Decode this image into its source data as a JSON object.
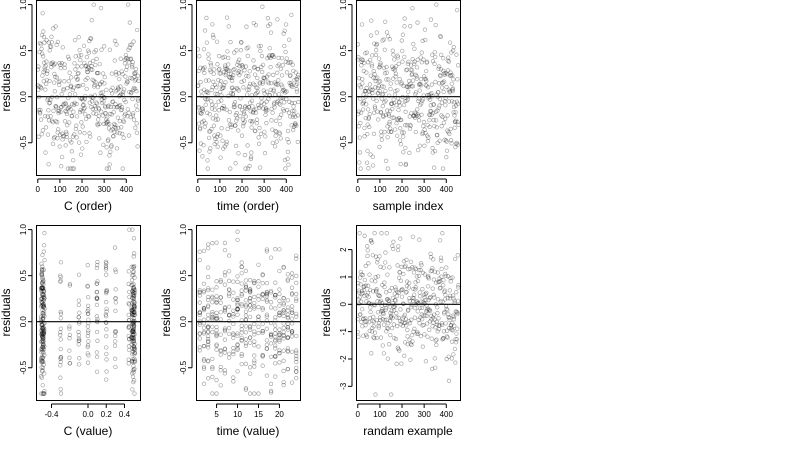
{
  "figure": {
    "layout": "2 rows x 3 columns of scatter panels",
    "point_color": "#000000",
    "point_opacity": 0.35,
    "reference_line": {
      "y": 0,
      "color": "#000000"
    }
  },
  "chart_data": [
    {
      "id": "c-order",
      "type": "scatter",
      "xlabel": "C (order)",
      "ylabel": "residuals",
      "xlim": [
        -8,
        462
      ],
      "ylim": [
        -0.85,
        1.05
      ],
      "xticks": [
        0,
        100,
        200,
        300,
        400
      ],
      "yticks": [
        -0.5,
        0.0,
        0.5,
        1.0
      ],
      "xtick_labels": [
        "0",
        "100",
        "200",
        "300",
        "400"
      ],
      "ytick_labels": [
        "-0.5",
        "0.0",
        "0.5",
        "1.0"
      ],
      "grid": false,
      "reference_line": 0,
      "series": [
        {
          "n_points": 456,
          "x": "observation index 0-455",
          "y_range_approx": [
            -0.78,
            1.0
          ],
          "sample_points": [
            [
              2,
              -0.55
            ],
            [
              20,
              -0.7
            ],
            [
              60,
              0.55
            ],
            [
              70,
              0.75
            ],
            [
              80,
              -0.55
            ],
            [
              150,
              0.88
            ],
            [
              200,
              0.62
            ],
            [
              240,
              0.55
            ],
            [
              300,
              -0.65
            ],
            [
              370,
              0.62
            ],
            [
              400,
              -0.5
            ],
            [
              440,
              0.78
            ],
            [
              450,
              -0.55
            ]
          ]
        }
      ]
    },
    {
      "id": "time-order",
      "type": "scatter",
      "xlabel": "time (order)",
      "ylabel": "residuals",
      "xlim": [
        -8,
        462
      ],
      "ylim": [
        -0.85,
        1.05
      ],
      "xticks": [
        0,
        100,
        200,
        300,
        400
      ],
      "yticks": [
        -0.5,
        0.0,
        0.5,
        1.0
      ],
      "xtick_labels": [
        "0",
        "100",
        "200",
        "300",
        "400"
      ],
      "ytick_labels": [
        "-0.5",
        "0.0",
        "0.5",
        "1.0"
      ],
      "grid": false,
      "reference_line": 0,
      "series": [
        {
          "n_points": 456,
          "x": "observation index 0-455",
          "y_range_approx": [
            -0.78,
            1.0
          ],
          "sample_points": [
            [
              5,
              -0.65
            ],
            [
              120,
              0.72
            ],
            [
              130,
              0.62
            ],
            [
              140,
              1.0
            ],
            [
              180,
              -0.55
            ],
            [
              190,
              -0.72
            ],
            [
              200,
              -0.75
            ],
            [
              260,
              -0.68
            ],
            [
              320,
              0.55
            ],
            [
              360,
              0.75
            ],
            [
              440,
              -0.55
            ]
          ]
        }
      ]
    },
    {
      "id": "sample-index",
      "type": "scatter",
      "xlabel": "sample index",
      "ylabel": "residuals",
      "xlim": [
        -8,
        462
      ],
      "ylim": [
        -0.85,
        1.05
      ],
      "xticks": [
        0,
        100,
        200,
        300,
        400
      ],
      "yticks": [
        -0.5,
        0.0,
        0.5,
        1.0
      ],
      "xtick_labels": [
        "0",
        "100",
        "200",
        "300",
        "400"
      ],
      "ytick_labels": [
        "-0.5",
        "0.0",
        "0.5",
        "1.0"
      ],
      "grid": false,
      "reference_line": 0,
      "series": [
        {
          "n_points": 456,
          "x": "observation index 0-455",
          "y_range_approx": [
            -0.78,
            1.0
          ],
          "sample_points": [
            [
              30,
              0.55
            ],
            [
              90,
              0.55
            ],
            [
              100,
              -0.72
            ],
            [
              120,
              -0.6
            ],
            [
              200,
              0.6
            ],
            [
              240,
              0.78
            ],
            [
              330,
              -0.55
            ],
            [
              350,
              0.62
            ],
            [
              380,
              1.0
            ],
            [
              430,
              0.55
            ],
            [
              440,
              -0.6
            ]
          ]
        }
      ]
    },
    {
      "id": "c-value",
      "type": "scatter",
      "xlabel": "C (value)",
      "ylabel": "residuals",
      "xlim": [
        -0.57,
        0.57
      ],
      "ylim": [
        -0.85,
        1.05
      ],
      "xticks": [
        -0.4,
        0.0,
        0.2,
        0.4
      ],
      "yticks": [
        -0.5,
        0.0,
        0.5,
        1.0
      ],
      "xtick_labels": [
        "-0.4",
        "0.0",
        "0.2",
        "0.4"
      ],
      "ytick_labels": [
        "-0.5",
        "0.0",
        "0.5",
        "1.0"
      ],
      "grid": false,
      "reference_line": 0,
      "series": [
        {
          "n_points": 456,
          "x_range_approx": [
            -0.5,
            0.5
          ],
          "y_range_approx": [
            -0.78,
            1.0
          ],
          "note": "points cluster in vertical bands at discrete C values, densest near -0.5 and 0.5",
          "sample_points": [
            [
              -0.5,
              -0.55
            ],
            [
              -0.48,
              -0.72
            ],
            [
              -0.3,
              0.9
            ],
            [
              -0.3,
              1.0
            ],
            [
              -0.3,
              0.62
            ],
            [
              0.5,
              0.78
            ],
            [
              0.5,
              -0.55
            ],
            [
              0.1,
              -0.45
            ],
            [
              -0.1,
              -0.68
            ]
          ]
        }
      ]
    },
    {
      "id": "time-value",
      "type": "scatter",
      "xlabel": "time (value)",
      "ylabel": "residuals",
      "xlim": [
        0.1,
        24.9
      ],
      "ylim": [
        -0.85,
        1.05
      ],
      "xticks": [
        5,
        10,
        15,
        20
      ],
      "yticks": [
        -0.5,
        0.0,
        0.5,
        1.0
      ],
      "xtick_labels": [
        "5",
        "10",
        "15",
        "20"
      ],
      "ytick_labels": [
        "-0.5",
        "0.0",
        "0.5",
        "1.0"
      ],
      "grid": false,
      "reference_line": 0,
      "series": [
        {
          "n_points": 456,
          "x_range_approx": [
            1,
            24
          ],
          "y_range_approx": [
            -0.78,
            1.0
          ],
          "note": "points fall on integer time values, forming vertical columns",
          "sample_points": [
            [
              2,
              -0.65
            ],
            [
              8,
              0.72
            ],
            [
              9,
              0.62
            ],
            [
              10,
              1.0
            ],
            [
              12,
              -0.55
            ],
            [
              12,
              -0.72
            ],
            [
              12,
              -0.75
            ],
            [
              17,
              -0.68
            ],
            [
              20,
              0.55
            ],
            [
              22,
              0.75
            ],
            [
              24,
              -0.55
            ]
          ]
        }
      ]
    },
    {
      "id": "random-example",
      "type": "scatter",
      "xlabel": "randam example",
      "ylabel": "residuals",
      "xlim": [
        -8,
        462
      ],
      "ylim": [
        -3.5,
        2.9
      ],
      "xticks": [
        0,
        100,
        200,
        300,
        400
      ],
      "yticks": [
        -3,
        -2,
        -1,
        0,
        1,
        2
      ],
      "xtick_labels": [
        "0",
        "100",
        "200",
        "300",
        "400"
      ],
      "ytick_labels": [
        "-3",
        "-2",
        "-1",
        "0",
        "1",
        "2"
      ],
      "grid": false,
      "reference_line": 0,
      "series": [
        {
          "n_points": 456,
          "x": "observation index 0-455",
          "y_range_approx": [
            -3.3,
            2.6
          ],
          "sample_points": [
            [
              60,
              -3.1
            ],
            [
              240,
              2.6
            ],
            [
              400,
              2.6
            ],
            [
              270,
              -2.8
            ],
            [
              300,
              -3.3
            ],
            [
              420,
              2.2
            ],
            [
              100,
              2.0
            ],
            [
              150,
              -2.3
            ]
          ]
        }
      ]
    }
  ]
}
